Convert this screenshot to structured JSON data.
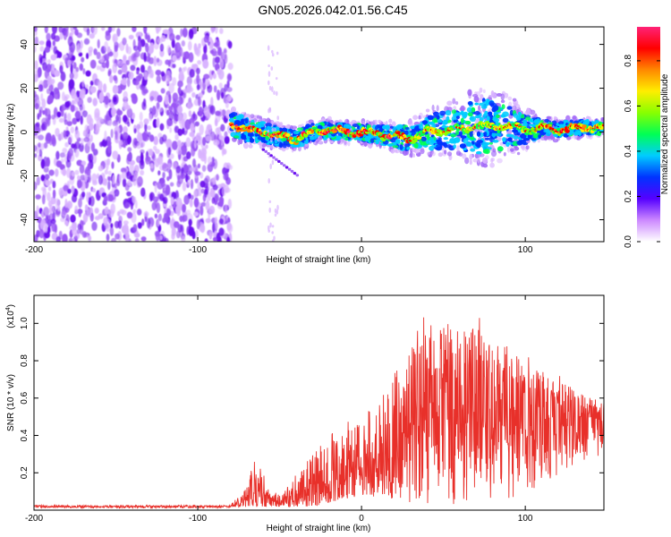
{
  "title": "GN05.2026.042.01.56.C45",
  "chart_data": [
    {
      "type": "heatmap",
      "name": "spectrogram",
      "xlabel": "Height of straight line (km)",
      "ylabel": "Frequency (Hz)",
      "xlim": [
        -200,
        148
      ],
      "ylim": [
        -50,
        48
      ],
      "xticks": [
        -200,
        -100,
        0,
        100
      ],
      "xtick_labels": [
        "-200",
        "-100",
        "0",
        "100"
      ],
      "yticks": [
        -40,
        -20,
        0,
        20,
        40
      ],
      "ytick_labels": [
        "-40",
        "-20",
        "0",
        "20",
        "40"
      ],
      "noise_region_x": [
        -200,
        -80
      ],
      "signal_centerline": [
        [
          -80,
          4
        ],
        [
          -70,
          1
        ],
        [
          -60,
          0
        ],
        [
          -50,
          -2
        ],
        [
          -40,
          -3
        ],
        [
          -30,
          0
        ],
        [
          -20,
          1
        ],
        [
          -10,
          0
        ],
        [
          0,
          0
        ],
        [
          10,
          -1
        ],
        [
          20,
          -2
        ],
        [
          30,
          -3
        ],
        [
          40,
          0
        ],
        [
          50,
          1
        ],
        [
          60,
          1
        ],
        [
          70,
          3
        ],
        [
          80,
          2
        ],
        [
          90,
          3
        ],
        [
          100,
          1
        ],
        [
          110,
          2
        ],
        [
          120,
          1
        ],
        [
          130,
          2
        ],
        [
          148,
          2
        ]
      ],
      "signal_halfwidth_hz": [
        [
          -80,
          6
        ],
        [
          -40,
          4
        ],
        [
          0,
          4
        ],
        [
          30,
          6
        ],
        [
          45,
          9
        ],
        [
          60,
          10
        ],
        [
          70,
          14
        ],
        [
          80,
          13
        ],
        [
          95,
          9
        ],
        [
          110,
          4
        ],
        [
          148,
          3
        ]
      ],
      "colorbar": {
        "label": "Normalized spectral amplitude",
        "range": [
          0,
          0.95
        ],
        "ticks": [
          0.0,
          0.2,
          0.4,
          0.6,
          0.8
        ],
        "tick_labels": [
          "0.0",
          "0.2",
          "0.4",
          "0.6",
          "0.8"
        ],
        "colormap": [
          "#ffffff",
          "#cc88ff",
          "#5500ff",
          "#0033ff",
          "#00ccff",
          "#00ff55",
          "#88ff00",
          "#ffee00",
          "#ff8800",
          "#ff0000",
          "#ff2277"
        ]
      }
    },
    {
      "type": "line",
      "name": "snr",
      "xlabel": "Height of straight line (km)",
      "ylabel": "SNR (10 * v/v)",
      "ylabel_multiplier": "(x10",
      "ylabel_multiplier_exp": "4",
      "xlim": [
        -200,
        148
      ],
      "ylim": [
        0,
        1.15
      ],
      "xticks": [
        -200,
        -100,
        0,
        100
      ],
      "xtick_labels": [
        "-200",
        "-100",
        "0",
        "100"
      ],
      "yticks": [
        0.2,
        0.4,
        0.6,
        0.8,
        1.0
      ],
      "ytick_labels": [
        "0.2",
        "0.4",
        "0.6",
        "0.8",
        "1.0"
      ],
      "color": "#e8302a",
      "envelope": [
        [
          -200,
          0.025
        ],
        [
          -100,
          0.025
        ],
        [
          -80,
          0.03
        ],
        [
          -70,
          0.12
        ],
        [
          -65,
          0.28
        ],
        [
          -60,
          0.2
        ],
        [
          -55,
          0.1
        ],
        [
          -50,
          0.08
        ],
        [
          -38,
          0.2
        ],
        [
          -28,
          0.3
        ],
        [
          -20,
          0.38
        ],
        [
          -10,
          0.45
        ],
        [
          0,
          0.5
        ],
        [
          10,
          0.58
        ],
        [
          20,
          0.7
        ],
        [
          30,
          0.85
        ],
        [
          40,
          1.05
        ],
        [
          50,
          1.0
        ],
        [
          60,
          0.95
        ],
        [
          70,
          1.0
        ],
        [
          80,
          0.9
        ],
        [
          100,
          0.8
        ],
        [
          120,
          0.7
        ],
        [
          135,
          0.62
        ],
        [
          148,
          0.58
        ]
      ],
      "floor": [
        [
          -200,
          0.01
        ],
        [
          -30,
          0.02
        ],
        [
          0,
          0.08
        ],
        [
          20,
          0.06
        ],
        [
          40,
          0.02
        ],
        [
          60,
          0.03
        ],
        [
          100,
          0.05
        ],
        [
          130,
          0.25
        ],
        [
          148,
          0.3
        ]
      ]
    }
  ]
}
